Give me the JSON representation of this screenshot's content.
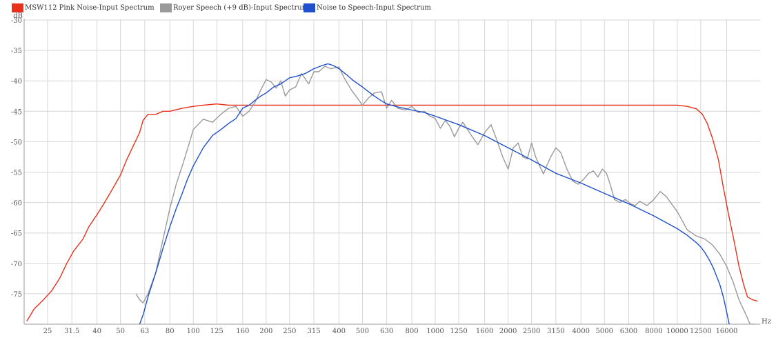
{
  "legend": [
    {
      "label": "MSW112 Pink Noise-Input Spectrum",
      "color": "#e8301a"
    },
    {
      "label": "Royer Speech (+9 dB)-Input Spectrum",
      "color": "#999999"
    },
    {
      "label": "Noise to Speech-Input Spectrum",
      "color": "#1f4fcc"
    }
  ],
  "chart_data": {
    "type": "line",
    "x_scale": "log",
    "xlabel": "Hz",
    "ylabel": "dB",
    "xlim": [
      20,
      22000
    ],
    "ylim": [
      -80,
      -30
    ],
    "grid": true,
    "legend_position": "top-left",
    "x_ticks": [
      25,
      31.5,
      40,
      50,
      63,
      80,
      100,
      125,
      160,
      200,
      250,
      315,
      400,
      500,
      630,
      800,
      1000,
      1250,
      1600,
      2000,
      2500,
      3150,
      4000,
      5000,
      6300,
      8000,
      10000,
      12500,
      16000
    ],
    "x_tick_labels": [
      "25",
      "31.5",
      "40",
      "50",
      "63",
      "80",
      "100",
      "125",
      "160",
      "200",
      "250",
      "315",
      "400",
      "500",
      "630",
      "800",
      "1000",
      "1250",
      "1600",
      "2000",
      "2500",
      "3150",
      "4000",
      "5000",
      "6300",
      "8000",
      "10000",
      "12500",
      "16000"
    ],
    "y_ticks": [
      -30,
      -35,
      -40,
      -45,
      -50,
      -55,
      -60,
      -65,
      -70,
      -75
    ],
    "y_tick_labels": [
      "-30",
      "-35",
      "-40",
      "-45",
      "-50",
      "-55",
      "-60",
      "-65",
      "-70",
      "-75"
    ],
    "series": [
      {
        "name": "MSW112 Pink Noise-Input Spectrum",
        "color": "#e8301a",
        "x": [
          20.5,
          22,
          24,
          26,
          28,
          30,
          32,
          35,
          37,
          40,
          43,
          46,
          50,
          53,
          56,
          60,
          62,
          65,
          70,
          75,
          80,
          90,
          100,
          110,
          125,
          140,
          160,
          180,
          200,
          250,
          315,
          400,
          500,
          630,
          800,
          1000,
          1250,
          1600,
          2000,
          2500,
          3150,
          4000,
          5000,
          6300,
          8000,
          10000,
          11000,
          12000,
          12700,
          13300,
          14000,
          14800,
          15500,
          16300,
          17200,
          18000,
          18800,
          19500,
          20500,
          21500
        ],
        "y": [
          -79.5,
          -77.5,
          -76,
          -74.5,
          -72.5,
          -70,
          -68,
          -66,
          -64,
          -62,
          -60,
          -58,
          -55.5,
          -53,
          -51,
          -48.5,
          -46.5,
          -45.5,
          -45.5,
          -45,
          -45,
          -44.5,
          -44.2,
          -44,
          -43.8,
          -44,
          -44,
          -44,
          -44,
          -44,
          -44,
          -44,
          -44,
          -44,
          -44,
          -44,
          -44,
          -44,
          -44,
          -44,
          -44,
          -44,
          -44,
          -44,
          -44,
          -44,
          -44.2,
          -44.6,
          -45.5,
          -47,
          -49.5,
          -53,
          -57.5,
          -62,
          -66.5,
          -70.5,
          -73.5,
          -75.5,
          -76,
          -76.2
        ]
      },
      {
        "name": "Royer Speech (+9 dB)-Input Spectrum",
        "color": "#999999",
        "x": [
          58,
          60,
          62,
          65,
          70,
          75,
          80,
          85,
          90,
          95,
          100,
          110,
          120,
          130,
          140,
          150,
          160,
          170,
          180,
          190,
          200,
          210,
          220,
          230,
          240,
          250,
          265,
          280,
          300,
          315,
          330,
          350,
          370,
          400,
          420,
          450,
          480,
          500,
          530,
          560,
          600,
          630,
          660,
          700,
          750,
          800,
          850,
          900,
          950,
          1000,
          1050,
          1100,
          1150,
          1200,
          1250,
          1300,
          1400,
          1500,
          1600,
          1700,
          1800,
          1900,
          2000,
          2100,
          2200,
          2300,
          2400,
          2500,
          2600,
          2700,
          2800,
          2900,
          3000,
          3150,
          3300,
          3500,
          3700,
          3900,
          4100,
          4300,
          4500,
          4700,
          4900,
          5100,
          5300,
          5500,
          5800,
          6100,
          6400,
          6700,
          7000,
          7500,
          8000,
          8500,
          9000,
          10000,
          11000,
          12000,
          13000,
          14000,
          15000,
          16000,
          17000,
          18000,
          19000,
          20000,
          21000
        ],
        "y": [
          -75,
          -76,
          -76.5,
          -75,
          -71.5,
          -66,
          -61,
          -57,
          -54,
          -51,
          -48,
          -46.3,
          -46.8,
          -45.5,
          -44.5,
          -44.2,
          -45.8,
          -45,
          -43.5,
          -41.5,
          -39.8,
          -40.2,
          -41.2,
          -40,
          -42.5,
          -41.5,
          -41,
          -38.8,
          -40.5,
          -38.5,
          -38.5,
          -37.6,
          -38,
          -37.7,
          -39.5,
          -41.5,
          -43,
          -44,
          -42.8,
          -42,
          -41.8,
          -44.5,
          -43.2,
          -44.5,
          -44.8,
          -44.2,
          -45.2,
          -45,
          -45.8,
          -46.2,
          -47.8,
          -46.5,
          -47.5,
          -49.2,
          -47.8,
          -46.8,
          -48.8,
          -50.5,
          -48.5,
          -47.2,
          -49.8,
          -52.5,
          -54.5,
          -51,
          -50.2,
          -52.5,
          -52.8,
          -50.2,
          -52.5,
          -54,
          -55.3,
          -53.8,
          -52.5,
          -51,
          -51.8,
          -54.5,
          -56.5,
          -57,
          -56.2,
          -55.2,
          -54.8,
          -55.8,
          -54.5,
          -55.2,
          -57.2,
          -59.5,
          -60,
          -59.5,
          -60.2,
          -60.5,
          -59.8,
          -60.5,
          -59.5,
          -58.2,
          -59,
          -61.5,
          -64.5,
          -65.5,
          -66,
          -67,
          -68.5,
          -70.5,
          -73,
          -76,
          -78,
          -80,
          -80
        ]
      },
      {
        "name": "Noise to Speech-Input Spectrum",
        "color": "#1f4fcc",
        "x": [
          60,
          62,
          65,
          70,
          75,
          80,
          85,
          90,
          95,
          100,
          110,
          120,
          130,
          140,
          150,
          160,
          170,
          180,
          190,
          200,
          215,
          230,
          250,
          270,
          290,
          315,
          340,
          360,
          380,
          400,
          430,
          460,
          500,
          530,
          560,
          600,
          630,
          700,
          800,
          900,
          1000,
          1250,
          1600,
          2000,
          2500,
          3150,
          4000,
          5000,
          6300,
          8000,
          9000,
          10000,
          11000,
          12000,
          12500,
          13000,
          13500,
          14000,
          14500,
          15000,
          15500,
          16000,
          16400,
          16800
        ],
        "y": [
          -80,
          -78.5,
          -75.5,
          -71.5,
          -67.5,
          -64,
          -61,
          -58.5,
          -56,
          -54,
          -51,
          -49,
          -48,
          -47,
          -46.2,
          -44.5,
          -44,
          -43.2,
          -42.5,
          -42,
          -41,
          -40.5,
          -39.5,
          -39.2,
          -38.8,
          -38,
          -37.5,
          -37.2,
          -37.5,
          -38,
          -39,
          -40,
          -41,
          -41.8,
          -42.5,
          -43.3,
          -43.8,
          -44.3,
          -44.8,
          -45.2,
          -45.8,
          -47.2,
          -49,
          -51,
          -53,
          -55.2,
          -56.8,
          -58.5,
          -60.2,
          -62.2,
          -63.3,
          -64.3,
          -65.4,
          -66.6,
          -67.3,
          -68.2,
          -69.3,
          -70.5,
          -72,
          -73.5,
          -75.5,
          -78,
          -80,
          -82
        ]
      }
    ]
  }
}
